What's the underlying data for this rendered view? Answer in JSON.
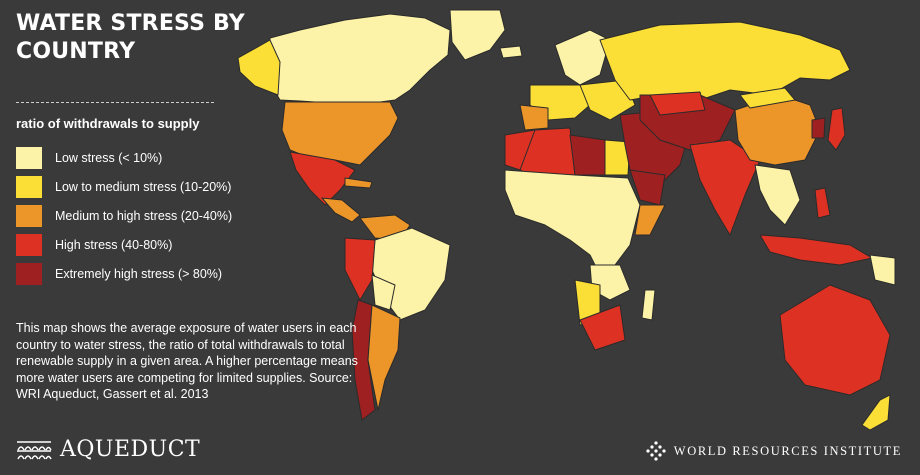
{
  "title": "WATER STRESS BY COUNTRY",
  "legend": {
    "title": "ratio of withdrawals to supply",
    "items": [
      {
        "label": "Low stress (< 10%)",
        "color": "#fdf3a8"
      },
      {
        "label": "Low to medium stress (10-20%)",
        "color": "#fbdf36"
      },
      {
        "label": "Medium to high stress (20-40%)",
        "color": "#ec962a"
      },
      {
        "label": "High stress (40-80%)",
        "color": "#dd3223"
      },
      {
        "label": "Extremely high stress (> 80%)",
        "color": "#9e2021"
      }
    ]
  },
  "description": "This map shows the average exposure of water users in each country to water stress, the ratio of total withdrawals to total renewable supply in a given area. A higher percentage means more water users are competing for limited supplies. Source: WRI Aqueduct, Gassert et al. 2013",
  "logos": {
    "aqueduct": "AQUEDUCT",
    "wri": "WORLD RESOURCES INSTITUTE"
  },
  "map_colors": {
    "background": "#3a3a3a",
    "border": "#2b2b2b"
  }
}
